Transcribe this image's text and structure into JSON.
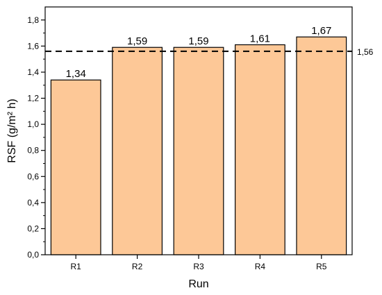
{
  "chart_data": {
    "type": "bar",
    "categories": [
      "R1",
      "R2",
      "R3",
      "R4",
      "R5"
    ],
    "values": [
      1.34,
      1.59,
      1.59,
      1.61,
      1.67
    ],
    "data_labels": [
      "1,34",
      "1,59",
      "1,59",
      "1,61",
      "1,67"
    ],
    "xlabel": "Run",
    "ylabel": "RSF (g/m² h)",
    "ylim": [
      0,
      1.9
    ],
    "yticks": [
      0,
      0.2,
      0.4,
      0.6,
      0.8,
      1.0,
      1.2,
      1.4,
      1.6,
      1.8
    ],
    "ytick_labels": [
      "0,0",
      "0,2",
      "0,4",
      "0,6",
      "0,8",
      "1,0",
      "1,2",
      "1,4",
      "1,6",
      "1,8"
    ],
    "reference_line": {
      "value": 1.56,
      "label": "1,56",
      "style": "dashed"
    },
    "bar_color": "#FDC897",
    "bar_edge_color": "#000000",
    "grid": false
  }
}
